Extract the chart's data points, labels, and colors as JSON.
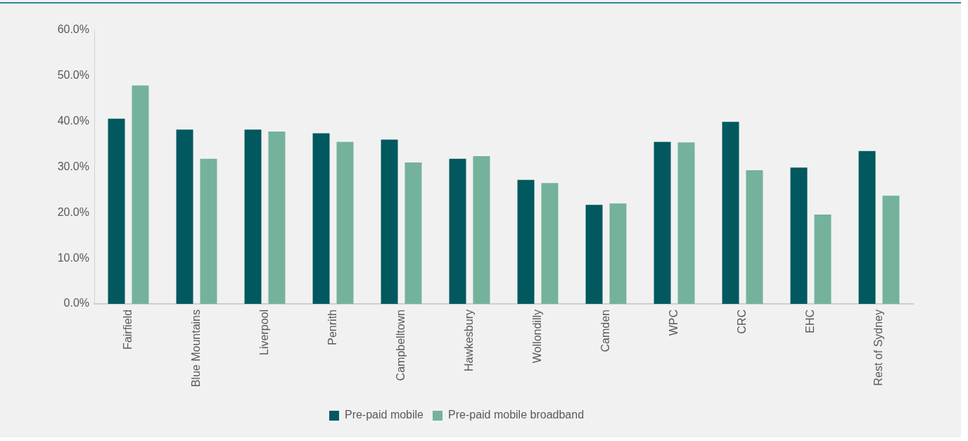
{
  "chart_data": {
    "type": "bar",
    "categories": [
      "Fairfield",
      "Blue Mountains",
      "Liverpool",
      "Penrith",
      "Campbelltown",
      "Hawkesbury",
      "Wollondilly",
      "Camden",
      "WPC",
      "CRC",
      "EHC",
      "Rest of Sydney"
    ],
    "series": [
      {
        "name": "Pre-paid mobile",
        "color": "#01585f",
        "values": [
          40.6,
          38.2,
          38.2,
          37.4,
          36.0,
          31.8,
          27.2,
          21.7,
          35.5,
          39.9,
          29.9,
          33.5
        ]
      },
      {
        "name": "Pre-paid mobile broadband",
        "color": "#74b29c",
        "values": [
          47.9,
          31.8,
          37.8,
          35.5,
          31.0,
          32.4,
          26.5,
          22.0,
          35.4,
          29.3,
          19.6,
          23.7
        ]
      }
    ],
    "ylim": [
      0,
      60
    ],
    "yticks": [
      {
        "value": 0,
        "label": "0.0%"
      },
      {
        "value": 10,
        "label": "10.0%"
      },
      {
        "value": 20,
        "label": "20.0%"
      },
      {
        "value": 30,
        "label": "30.0%"
      },
      {
        "value": 40,
        "label": "40.0%"
      },
      {
        "value": 50,
        "label": "50.0%"
      },
      {
        "value": 60,
        "label": "60.0%"
      }
    ],
    "grid": false,
    "legend": "bottom"
  }
}
